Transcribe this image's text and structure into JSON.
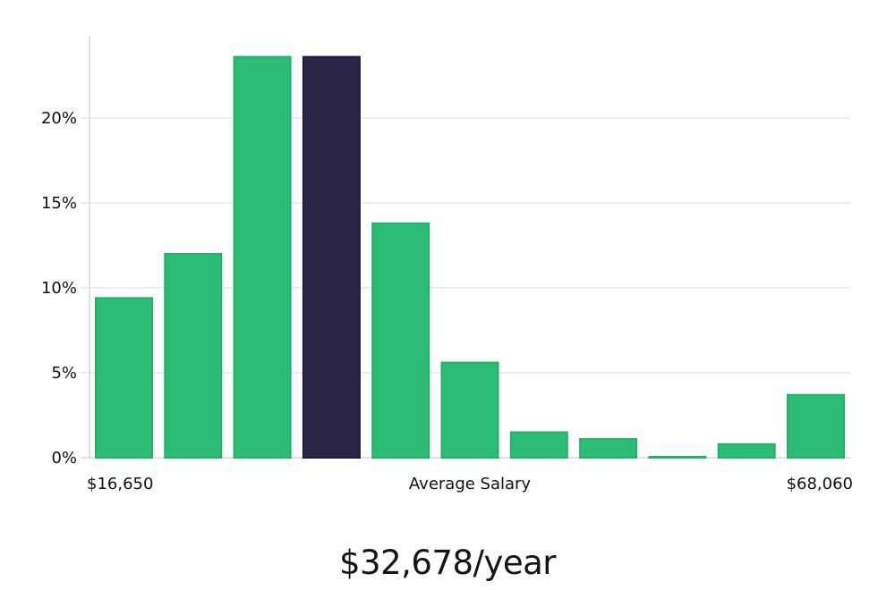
{
  "chart_data": {
    "type": "bar",
    "title": "",
    "xlabel": "Average Salary",
    "ylabel": "",
    "x_start_label": "$16,650",
    "x_end_label": "$68,060",
    "y_ticks": [
      0,
      5,
      10,
      15,
      20
    ],
    "y_tick_labels": [
      "0%",
      "5%",
      "10%",
      "15%",
      "20%"
    ],
    "ylim": [
      0,
      25
    ],
    "grid": true,
    "values": [
      9.4,
      12.0,
      23.6,
      23.6,
      13.8,
      5.6,
      1.5,
      1.1,
      0.05,
      0.8,
      3.7
    ],
    "highlight_index": 3,
    "colors": {
      "bar": "#2bbd76",
      "bar_outline": "#22b06a",
      "highlight": "#292646",
      "highlight_outline": "#1d1a40",
      "grid": "#e3e3e3",
      "axis": "#cfcfcf"
    }
  },
  "summary": {
    "salary_text": "$32,678/year"
  }
}
